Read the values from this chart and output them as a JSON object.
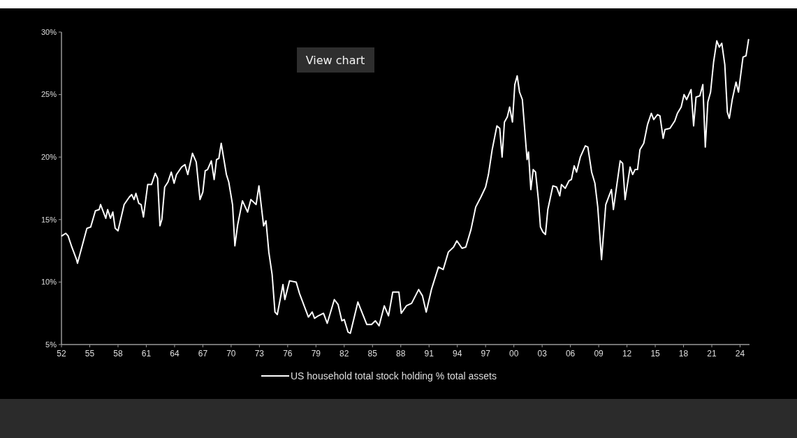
{
  "chart_data": {
    "type": "line",
    "legend": "bottom",
    "grid": false,
    "annotations": [
      "View chart"
    ],
    "xlim": [
      1952,
      2025
    ],
    "ylim": [
      5,
      30
    ],
    "xticks": [
      {
        "value": 1952,
        "label": "52"
      },
      {
        "value": 1955,
        "label": "55"
      },
      {
        "value": 1958,
        "label": "58"
      },
      {
        "value": 1961,
        "label": "61"
      },
      {
        "value": 1964,
        "label": "64"
      },
      {
        "value": 1967,
        "label": "67"
      },
      {
        "value": 1970,
        "label": "70"
      },
      {
        "value": 1973,
        "label": "73"
      },
      {
        "value": 1976,
        "label": "76"
      },
      {
        "value": 1979,
        "label": "79"
      },
      {
        "value": 1982,
        "label": "82"
      },
      {
        "value": 1985,
        "label": "85"
      },
      {
        "value": 1988,
        "label": "88"
      },
      {
        "value": 1991,
        "label": "91"
      },
      {
        "value": 1994,
        "label": "94"
      },
      {
        "value": 1997,
        "label": "97"
      },
      {
        "value": 2000,
        "label": "00"
      },
      {
        "value": 2003,
        "label": "03"
      },
      {
        "value": 2006,
        "label": "06"
      },
      {
        "value": 2009,
        "label": "09"
      },
      {
        "value": 2012,
        "label": "12"
      },
      {
        "value": 2015,
        "label": "15"
      },
      {
        "value": 2018,
        "label": "18"
      },
      {
        "value": 2021,
        "label": "21"
      },
      {
        "value": 2024,
        "label": "24"
      }
    ],
    "yticks": [
      {
        "value": 5,
        "label": "5%"
      },
      {
        "value": 10,
        "label": "10%"
      },
      {
        "value": 15,
        "label": "15%"
      },
      {
        "value": 20,
        "label": "20%"
      },
      {
        "value": 25,
        "label": "25%"
      },
      {
        "value": 30,
        "label": "30%"
      }
    ],
    "series": [
      {
        "name": "US household total stock holding % total assets",
        "color": "#ffffff",
        "x": [
          1952.05,
          1952.45,
          1952.7,
          1953.1,
          1953.6,
          1953.7,
          1954.7,
          1955.1,
          1955.6,
          1956.0,
          1956.15,
          1956.7,
          1956.9,
          1957.2,
          1957.45,
          1957.7,
          1958.0,
          1958.65,
          1959.2,
          1959.45,
          1959.7,
          1959.9,
          1960.2,
          1960.45,
          1960.7,
          1961.15,
          1961.55,
          1961.95,
          1962.2,
          1962.45,
          1962.65,
          1962.95,
          1963.3,
          1963.65,
          1963.95,
          1964.2,
          1964.75,
          1965.1,
          1965.4,
          1965.9,
          1966.3,
          1966.7,
          1967.0,
          1967.25,
          1967.5,
          1967.9,
          1968.2,
          1968.45,
          1968.7,
          1968.95,
          1969.5,
          1969.75,
          1970.15,
          1970.4,
          1970.7,
          1971.2,
          1971.75,
          1972.1,
          1972.65,
          1972.95,
          1973.45,
          1973.7,
          1974.0,
          1974.35,
          1974.65,
          1974.9,
          1975.5,
          1975.7,
          1976.2,
          1976.9,
          1977.25,
          1978.2,
          1978.6,
          1978.85,
          1979.25,
          1979.8,
          1980.2,
          1980.95,
          1981.35,
          1981.75,
          1982.0,
          1982.4,
          1982.65,
          1983.45,
          1984.4,
          1984.9,
          1985.3,
          1985.7,
          1986.25,
          1986.7,
          1987.15,
          1987.8,
          1988.05,
          1988.6,
          1989.15,
          1989.9,
          1990.3,
          1990.7,
          1991.25,
          1992.0,
          1992.5,
          1993.05,
          1993.6,
          1993.95,
          1994.5,
          1994.9,
          1995.45,
          1995.95,
          1996.5,
          1997.0,
          1997.3,
          1997.7,
          1998.2,
          1998.5,
          1998.75,
          1999.0,
          1999.3,
          1999.55,
          1999.85,
          2000.1,
          2000.35,
          2000.6,
          2000.9,
          2001.4,
          2001.55,
          2001.8,
          2002.05,
          2002.3,
          2002.6,
          2002.82,
          2003.08,
          2003.35,
          2003.6,
          2004.14,
          2004.53,
          2004.87,
          2005.05,
          2005.45,
          2005.85,
          2006.1,
          2006.4,
          2006.65,
          2007.05,
          2007.58,
          2007.85,
          2008.25,
          2008.6,
          2008.9,
          2009.3,
          2009.75,
          2010.35,
          2010.56,
          2011.28,
          2011.54,
          2011.8,
          2012.33,
          2012.6,
          2012.86,
          2013.12,
          2013.38,
          2013.78,
          2014.18,
          2014.58,
          2014.84,
          2015.24,
          2015.5,
          2015.84,
          2016.03,
          2016.56,
          2017.08,
          2017.35,
          2017.75,
          2018.06,
          2018.33,
          2018.8,
          2019.07,
          2019.33,
          2019.73,
          2020.05,
          2020.31,
          2020.58,
          2020.87,
          2021.19,
          2021.53,
          2021.8,
          2022.06,
          2022.38,
          2022.65,
          2022.86,
          2023.17,
          2023.57,
          2023.83,
          2024.31,
          2024.63,
          2024.9
        ],
        "values": [
          13.7,
          13.9,
          13.7,
          12.8,
          11.8,
          11.5,
          14.3,
          14.4,
          15.7,
          15.8,
          16.2,
          15.1,
          15.8,
          15.1,
          15.6,
          14.3,
          14.1,
          16.2,
          16.8,
          17.0,
          16.6,
          17.1,
          16.3,
          16.2,
          15.2,
          17.8,
          17.8,
          18.7,
          18.3,
          14.5,
          15.0,
          17.6,
          18.0,
          18.8,
          17.9,
          18.6,
          19.2,
          19.4,
          18.6,
          20.3,
          19.6,
          16.6,
          17.2,
          18.9,
          19.0,
          19.7,
          18.2,
          19.8,
          19.9,
          21.1,
          18.6,
          18.0,
          16.2,
          12.9,
          14.6,
          16.5,
          15.6,
          16.6,
          16.2,
          17.7,
          14.5,
          14.9,
          12.4,
          10.6,
          7.6,
          7.4,
          9.8,
          8.6,
          10.1,
          10.0,
          9.1,
          7.2,
          7.6,
          7.1,
          7.3,
          7.5,
          6.7,
          8.6,
          8.2,
          6.9,
          7.0,
          6.0,
          5.9,
          8.4,
          6.6,
          6.6,
          6.9,
          6.5,
          8.1,
          7.3,
          9.2,
          9.2,
          7.5,
          8.1,
          8.3,
          9.4,
          8.9,
          7.6,
          9.4,
          11.2,
          11.0,
          12.4,
          12.8,
          13.3,
          12.7,
          12.8,
          14.2,
          16.0,
          16.8,
          17.6,
          18.6,
          20.6,
          22.5,
          22.3,
          20.0,
          22.8,
          23.2,
          24.0,
          22.8,
          25.8,
          26.5,
          25.2,
          24.6,
          19.8,
          20.4,
          17.4,
          19.0,
          18.8,
          16.6,
          14.4,
          14.0,
          13.8,
          15.8,
          17.7,
          17.6,
          16.9,
          17.8,
          17.5,
          18.1,
          18.2,
          19.3,
          18.8,
          20.0,
          20.9,
          20.8,
          18.8,
          17.9,
          16.0,
          11.8,
          16.2,
          17.4,
          15.8,
          19.7,
          19.5,
          16.6,
          19.2,
          18.6,
          19.0,
          19.0,
          20.6,
          21.1,
          22.6,
          23.5,
          23.0,
          23.4,
          23.3,
          21.5,
          22.2,
          22.3,
          22.9,
          23.5,
          24.0,
          25.0,
          24.6,
          25.4,
          22.5,
          24.8,
          24.9,
          25.8,
          20.8,
          24.4,
          25.2,
          27.6,
          29.3,
          28.8,
          29.1,
          27.4,
          23.6,
          23.1,
          24.6,
          26.0,
          25.2,
          28.0,
          28.1,
          29.4
        ]
      }
    ]
  }
}
